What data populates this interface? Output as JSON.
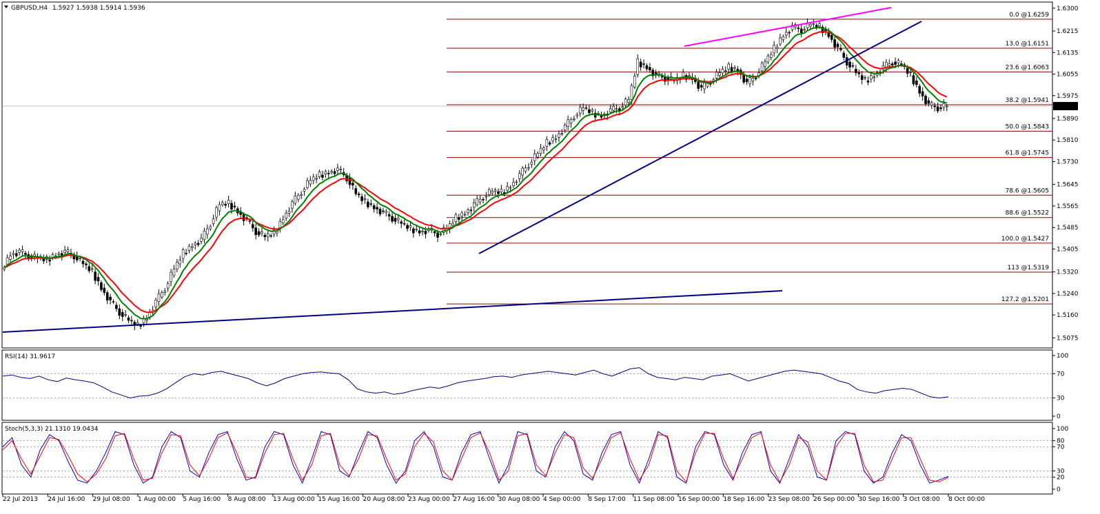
{
  "header": {
    "symbol": "GBPUSD,H4",
    "ohlc": "1.5927 1.5938 1.5914 1.5936"
  },
  "colors": {
    "background": "#ffffff",
    "grid": "#000000",
    "fib": "#8b0000",
    "ema_fast": "#ff0000",
    "ema_slow": "#008000",
    "trend": "#000080",
    "resistance": "#ff00ff",
    "rsi": "#000080",
    "stoch_main": "#0000cd",
    "stoch_signal": "#ff0000",
    "price_tag_bg": "#000000",
    "price_tag_fg": "#ffffff"
  },
  "chart_data": [
    {
      "type": "candlestick",
      "title": "GBPUSD,H4",
      "current_price": "1.5936",
      "ylim": [
        1.504,
        1.632
      ],
      "y_ticks": [
        "1.6300",
        "1.6215",
        "1.6135",
        "1.6055",
        "1.5975",
        "1.5890",
        "1.5810",
        "1.5730",
        "1.5645",
        "1.5565",
        "1.5485",
        "1.5405",
        "1.5320",
        "1.5240",
        "1.5160",
        "1.5075"
      ],
      "x_labels": [
        "22 Jul 2013",
        "24 Jul 16:00",
        "29 Jul 08:00",
        "1 Aug 00:00",
        "5 Aug 16:00",
        "8 Aug 08:00",
        "13 Aug 00:00",
        "15 Aug 16:00",
        "20 Aug 08:00",
        "23 Aug 00:00",
        "27 Aug 16:00",
        "30 Aug 08:00",
        "4 Sep 00:00",
        "8 Sep 17:00",
        "11 Sep 08:00",
        "16 Sep 00:00",
        "18 Sep 16:00",
        "23 Sep 08:00",
        "26 Sep 00:00",
        "30 Sep 16:00",
        "3 Oct 08:00",
        "8 Oct 00:00"
      ],
      "fib_levels": [
        {
          "label": "0.0 @1.6259",
          "price": 1.6259
        },
        {
          "label": "13.0 @1.6151",
          "price": 1.6151
        },
        {
          "label": "23.6 @1.6063",
          "price": 1.6063
        },
        {
          "label": "38.2 @1.5941",
          "price": 1.5941
        },
        {
          "label": "50.0 @1.5843",
          "price": 1.5843
        },
        {
          "label": "61.8 @1.5745",
          "price": 1.5745
        },
        {
          "label": "78.6 @1.5605",
          "price": 1.5605
        },
        {
          "label": "88.6 @1.5522",
          "price": 1.5522
        },
        {
          "label": "100.0 @1.5427",
          "price": 1.5427
        },
        {
          "label": "113 @1.5319",
          "price": 1.5319
        },
        {
          "label": "127.2 @1.5201",
          "price": 1.5201
        }
      ],
      "close_path": [
        1.533,
        1.5385,
        1.5395,
        1.538,
        1.537,
        1.5365,
        1.5385,
        1.5395,
        1.538,
        1.535,
        1.532,
        1.526,
        1.521,
        1.517,
        1.514,
        1.512,
        1.515,
        1.521,
        1.526,
        1.533,
        1.539,
        1.542,
        1.544,
        1.55,
        1.557,
        1.5575,
        1.5545,
        1.551,
        1.547,
        1.545,
        1.5465,
        1.552,
        1.5575,
        1.562,
        1.566,
        1.568,
        1.569,
        1.57,
        1.567,
        1.561,
        1.558,
        1.556,
        1.554,
        1.552,
        1.55,
        1.548,
        1.547,
        1.5475,
        1.546,
        1.548,
        1.552,
        1.554,
        1.557,
        1.56,
        1.562,
        1.5615,
        1.564,
        1.568,
        1.572,
        1.576,
        1.58,
        1.582,
        1.586,
        1.59,
        1.593,
        1.591,
        1.59,
        1.592,
        1.593,
        1.596,
        1.61,
        1.608,
        1.605,
        1.604,
        1.603,
        1.605,
        1.604,
        1.6,
        1.603,
        1.606,
        1.608,
        1.607,
        1.602,
        1.605,
        1.61,
        1.615,
        1.62,
        1.623,
        1.622,
        1.624,
        1.623,
        1.62,
        1.615,
        1.61,
        1.606,
        1.603,
        1.605,
        1.608,
        1.61,
        1.609,
        1.605,
        1.599,
        1.594,
        1.593,
        1.5936
      ],
      "ema_fast_name": "",
      "ema_slow_name": ""
    },
    {
      "type": "line",
      "title": "RSI(14) 31.9617",
      "ylim": [
        0,
        100
      ],
      "y_ticks": [
        "100",
        "70",
        "30",
        "0"
      ],
      "levels": [
        70,
        30
      ],
      "values": [
        66,
        68,
        64,
        62,
        66,
        60,
        57,
        63,
        60,
        58,
        55,
        48,
        40,
        35,
        30,
        33,
        34,
        38,
        45,
        55,
        65,
        70,
        68,
        72,
        74,
        70,
        66,
        62,
        55,
        50,
        55,
        62,
        66,
        70,
        72,
        73,
        71,
        70,
        60,
        45,
        40,
        38,
        40,
        36,
        38,
        42,
        45,
        48,
        46,
        50,
        55,
        58,
        60,
        62,
        65,
        66,
        64,
        68,
        70,
        72,
        74,
        72,
        70,
        68,
        72,
        76,
        70,
        66,
        72,
        78,
        80,
        70,
        64,
        62,
        60,
        64,
        62,
        60,
        66,
        68,
        70,
        64,
        58,
        62,
        66,
        70,
        74,
        76,
        74,
        72,
        70,
        64,
        58,
        54,
        44,
        40,
        38,
        42,
        44,
        46,
        44,
        38,
        32,
        30,
        31.96
      ]
    },
    {
      "type": "line",
      "title": "Stoch(5,3,3) 21.1310 19.0434",
      "ylim": [
        0,
        100
      ],
      "y_ticks": [
        "100",
        "80",
        "70",
        "30",
        "20",
        "0"
      ],
      "levels": [
        80,
        70,
        30,
        20
      ],
      "series": [
        {
          "name": "21.1310",
          "values": [
            70,
            85,
            40,
            20,
            65,
            90,
            80,
            45,
            15,
            10,
            30,
            60,
            95,
            90,
            40,
            10,
            20,
            70,
            95,
            85,
            30,
            20,
            60,
            90,
            95,
            50,
            15,
            20,
            70,
            95,
            90,
            40,
            10,
            50,
            95,
            90,
            30,
            20,
            60,
            95,
            85,
            40,
            10,
            30,
            80,
            95,
            70,
            20,
            15,
            60,
            90,
            95,
            50,
            10,
            40,
            95,
            90,
            30,
            20,
            70,
            95,
            80,
            25,
            15,
            60,
            90,
            95,
            40,
            10,
            50,
            95,
            85,
            20,
            10,
            70,
            95,
            90,
            40,
            15,
            60,
            90,
            95,
            30,
            10,
            50,
            90,
            70,
            20,
            15,
            80,
            95,
            90,
            30,
            10,
            20,
            60,
            90,
            80,
            40,
            10,
            15,
            21.13
          ]
        },
        {
          "name": "19.0434",
          "values": [
            65,
            80,
            50,
            25,
            55,
            85,
            82,
            55,
            25,
            12,
            25,
            50,
            88,
            92,
            50,
            15,
            18,
            60,
            90,
            88,
            40,
            22,
            50,
            85,
            93,
            60,
            20,
            18,
            60,
            90,
            92,
            50,
            15,
            40,
            88,
            92,
            40,
            22,
            50,
            90,
            88,
            50,
            15,
            25,
            70,
            92,
            78,
            30,
            15,
            50,
            85,
            93,
            60,
            15,
            30,
            88,
            92,
            40,
            22,
            60,
            90,
            85,
            35,
            18,
            50,
            85,
            93,
            50,
            15,
            40,
            90,
            88,
            30,
            12,
            60,
            92,
            92,
            50,
            18,
            50,
            85,
            93,
            40,
            12,
            40,
            85,
            78,
            30,
            15,
            70,
            92,
            92,
            40,
            12,
            15,
            50,
            85,
            85,
            50,
            15,
            12,
            19.04
          ]
        }
      ]
    }
  ]
}
